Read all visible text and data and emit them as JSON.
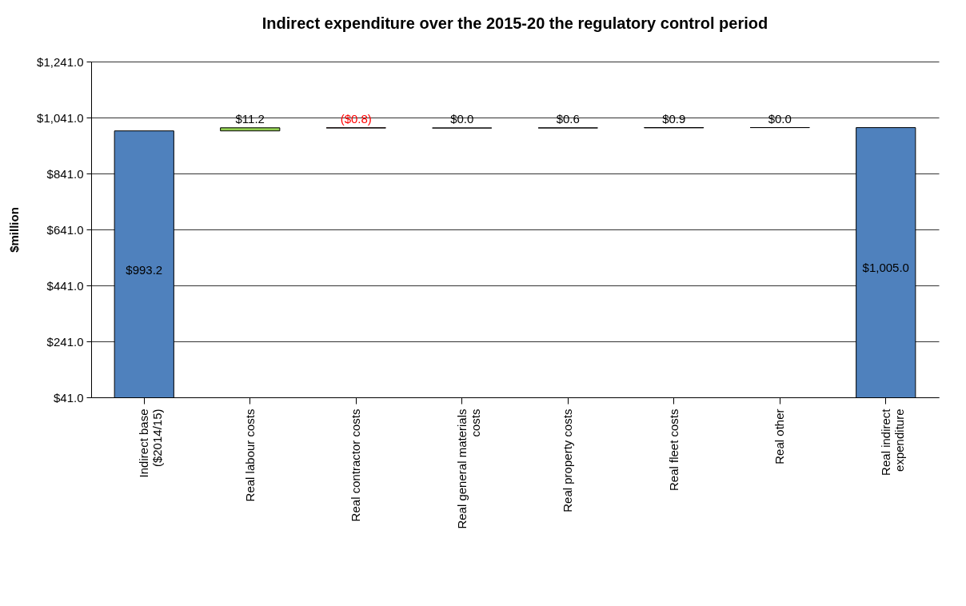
{
  "chart_data": {
    "type": "bar",
    "title": "Indirect expenditure over the 2015-20 the regulatory control period",
    "ylabel": "$million",
    "categories": [
      "Indirect base ($2014/15)",
      "Real labour costs",
      "Real contractor costs",
      "Real general materials costs",
      "Real property costs",
      "Real fleet costs",
      "Real other",
      "Real indirect expenditure"
    ],
    "values": [
      993.2,
      11.2,
      -0.8,
      0.0,
      0.6,
      0.9,
      0.0,
      1005.0
    ],
    "base": [
      0,
      993.2,
      1004.4,
      1003.6,
      1003.6,
      1004.2,
      1005.1,
      0
    ],
    "colors": [
      "#4f81bd",
      "#92d050",
      "#ff0000",
      "#000000",
      "#000000",
      "#000000",
      "#000000",
      "#4f81bd"
    ],
    "value_labels": [
      "$993.2",
      "$11.2",
      "($0.8)",
      "$0.0",
      "$0.6",
      "$0.9",
      "$0.0",
      "$1,005.0"
    ],
    "ylim": [
      41,
      1241
    ],
    "yticks": [
      {
        "value": 41,
        "label": "$41.0"
      },
      {
        "value": 241,
        "label": "$241.0"
      },
      {
        "value": 441,
        "label": "$441.0"
      },
      {
        "value": 641,
        "label": "$641.0"
      },
      {
        "value": 841,
        "label": "$841.0"
      },
      {
        "value": 1041,
        "label": "$1,041.0"
      },
      {
        "value": 1241,
        "label": "$1,241.0"
      }
    ],
    "grid": "y",
    "legend": false
  }
}
